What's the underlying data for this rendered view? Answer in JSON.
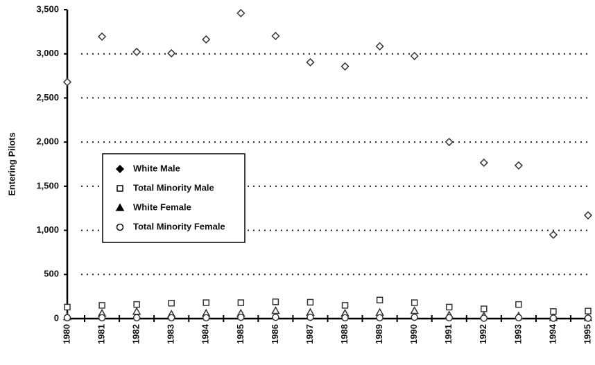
{
  "chart_data": {
    "type": "scatter",
    "y_label": "Entering Pilots",
    "categories": [
      "1980",
      "1981",
      "1982",
      "1983",
      "1984",
      "1985",
      "1986",
      "1987",
      "1988",
      "1989",
      "1990",
      "1991",
      "1992",
      "1993",
      "1994",
      "1995"
    ],
    "ylim": [
      0,
      3500
    ],
    "yticks": [
      {
        "value": 0,
        "label": "0"
      },
      {
        "value": 500,
        "label": "500"
      },
      {
        "value": 1000,
        "label": "1,000"
      },
      {
        "value": 1500,
        "label": "1,500"
      },
      {
        "value": 2000,
        "label": "2,000"
      },
      {
        "value": 2500,
        "label": "2,500"
      },
      {
        "value": 3000,
        "label": "3,000"
      },
      {
        "value": 3500,
        "label": "3,500"
      }
    ],
    "grid": true,
    "series": [
      {
        "name": "White Male",
        "marker": "diamond",
        "color": "#333333",
        "values": [
          2680,
          3195,
          3022,
          3006,
          3163,
          3461,
          3202,
          2904,
          2857,
          3085,
          2975,
          2001,
          1766,
          1735,
          950,
          1170
        ]
      },
      {
        "name": "Total Minority Male",
        "marker": "square",
        "color": "#333333",
        "values": [
          130,
          150,
          160,
          175,
          180,
          180,
          190,
          185,
          150,
          210,
          180,
          130,
          110,
          160,
          80,
          85
        ]
      },
      {
        "name": "White Female",
        "marker": "triangle",
        "color": "#333333",
        "values": [
          20,
          60,
          80,
          50,
          60,
          60,
          90,
          70,
          60,
          70,
          90,
          40,
          30,
          30,
          10,
          10
        ]
      },
      {
        "name": "Total Minority Female",
        "marker": "circle",
        "color": "#333333",
        "values": [
          10,
          10,
          10,
          10,
          10,
          15,
          15,
          15,
          10,
          10,
          15,
          10,
          5,
          10,
          5,
          5
        ]
      }
    ]
  }
}
